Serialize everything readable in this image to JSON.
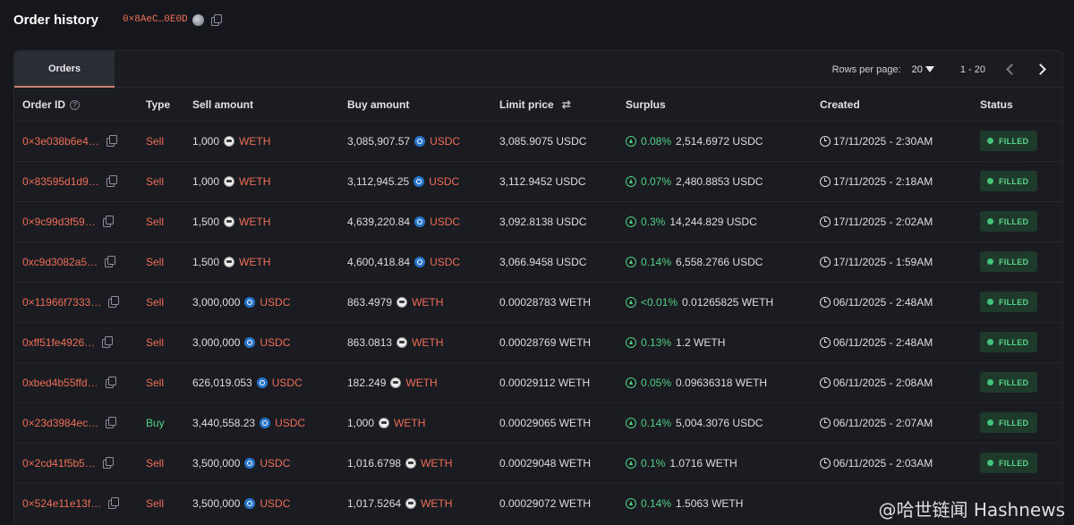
{
  "header": {
    "title": "Order history",
    "address": "0×8AeC…0E0D"
  },
  "tabs": {
    "orders": "Orders"
  },
  "pagination": {
    "rows_per_page_label": "Rows per page:",
    "rows_per_page_value": "20",
    "range": "1 - 20"
  },
  "columns": {
    "order_id": "Order ID",
    "type": "Type",
    "sell_amount": "Sell amount",
    "buy_amount": "Buy amount",
    "limit_price": "Limit price",
    "surplus": "Surplus",
    "created": "Created",
    "status": "Status"
  },
  "rows": [
    {
      "id": "0×3e038b6e4…",
      "type": "Sell",
      "sell_amt": "1,000",
      "sell_tok": "WETH",
      "buy_amt": "3,085,907.57",
      "buy_tok": "USDC",
      "limit": "3,085.9075 USDC",
      "pct": "0.08%",
      "surplus": "2,514.6972 USDC",
      "created": "17/11/2025 - 2:30AM",
      "status": "FILLED"
    },
    {
      "id": "0×83595d1d9…",
      "type": "Sell",
      "sell_amt": "1,000",
      "sell_tok": "WETH",
      "buy_amt": "3,112,945.25",
      "buy_tok": "USDC",
      "limit": "3,112.9452 USDC",
      "pct": "0.07%",
      "surplus": "2,480.8853 USDC",
      "created": "17/11/2025 - 2:18AM",
      "status": "FILLED"
    },
    {
      "id": "0×9c99d3f59…",
      "type": "Sell",
      "sell_amt": "1,500",
      "sell_tok": "WETH",
      "buy_amt": "4,639,220.84",
      "buy_tok": "USDC",
      "limit": "3,092.8138 USDC",
      "pct": "0.3%",
      "surplus": "14,244.829 USDC",
      "created": "17/11/2025 - 2:02AM",
      "status": "FILLED"
    },
    {
      "id": "0xc9d3082a5…",
      "type": "Sell",
      "sell_amt": "1,500",
      "sell_tok": "WETH",
      "buy_amt": "4,600,418.84",
      "buy_tok": "USDC",
      "limit": "3,066.9458 USDC",
      "pct": "0.14%",
      "surplus": "6,558.2766 USDC",
      "created": "17/11/2025 - 1:59AM",
      "status": "FILLED"
    },
    {
      "id": "0×11966f7333…",
      "type": "Sell",
      "sell_amt": "3,000,000",
      "sell_tok": "USDC",
      "buy_amt": "863.4979",
      "buy_tok": "WETH",
      "limit": "0.00028783 WETH",
      "pct": "<0.01%",
      "surplus": "0.01265825 WETH",
      "created": "06/11/2025 - 2:48AM",
      "status": "FILLED"
    },
    {
      "id": "0xff51fe4926…",
      "type": "Sell",
      "sell_amt": "3,000,000",
      "sell_tok": "USDC",
      "buy_amt": "863.0813",
      "buy_tok": "WETH",
      "limit": "0.00028769 WETH",
      "pct": "0.13%",
      "surplus": "1.2 WETH",
      "created": "06/11/2025 - 2:48AM",
      "status": "FILLED"
    },
    {
      "id": "0xbed4b55ffd…",
      "type": "Sell",
      "sell_amt": "626,019.053",
      "sell_tok": "USDC",
      "buy_amt": "182.249",
      "buy_tok": "WETH",
      "limit": "0.00029112 WETH",
      "pct": "0.05%",
      "surplus": "0.09636318 WETH",
      "created": "06/11/2025 - 2:08AM",
      "status": "FILLED"
    },
    {
      "id": "0×23d3984ec…",
      "type": "Buy",
      "sell_amt": "3,440,558.23",
      "sell_tok": "USDC",
      "buy_amt": "1,000",
      "buy_tok": "WETH",
      "limit": "0.00029065 WETH",
      "pct": "0.14%",
      "surplus": "5,004.3076 USDC",
      "created": "06/11/2025 - 2:07AM",
      "status": "FILLED"
    },
    {
      "id": "0×2cd41f5b5…",
      "type": "Sell",
      "sell_amt": "3,500,000",
      "sell_tok": "USDC",
      "buy_amt": "1,016.6798",
      "buy_tok": "WETH",
      "limit": "0.00029048 WETH",
      "pct": "0.1%",
      "surplus": "1.0716 WETH",
      "created": "06/11/2025 - 2:03AM",
      "status": "FILLED"
    },
    {
      "id": "0×524e11e13f…",
      "type": "Sell",
      "sell_amt": "3,500,000",
      "sell_tok": "USDC",
      "buy_amt": "1,017.5264",
      "buy_tok": "WETH",
      "limit": "0.00029072 WETH",
      "pct": "0.14%",
      "surplus": "1.5063 WETH",
      "created": "",
      "status": ""
    }
  ],
  "watermark": "@哈世链闻 Hashnews",
  "colors": {
    "background": "#16171c",
    "panel": "#1b1c21",
    "accent_red": "#ef6d56",
    "accent_green": "#4fcf85",
    "badge_bg": "#1d3a2a"
  }
}
